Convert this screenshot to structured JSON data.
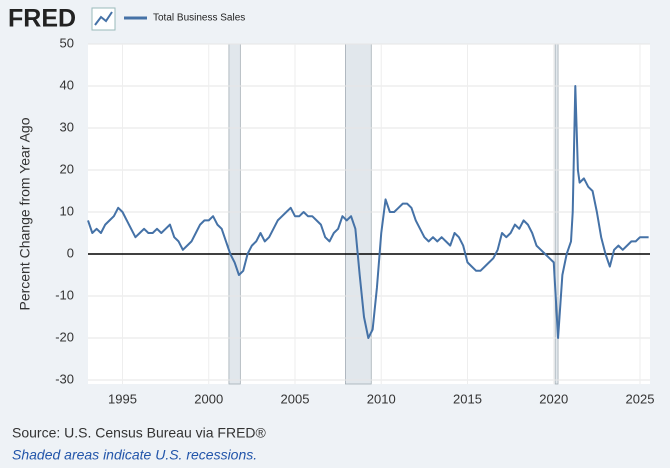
{
  "chart_data": {
    "type": "line",
    "brand": "FRED",
    "ylabel": "Percent Change from Year Ago",
    "source": "Source: U.S. Census Bureau via FRED®",
    "note": "Shaded areas indicate U.S. recessions.",
    "x": [
      1993.0,
      1993.25,
      1993.5,
      1993.75,
      1994.0,
      1994.25,
      1994.5,
      1994.75,
      1995.0,
      1995.25,
      1995.5,
      1995.75,
      1996.0,
      1996.25,
      1996.5,
      1996.75,
      1997.0,
      1997.25,
      1997.5,
      1997.75,
      1998.0,
      1998.25,
      1998.5,
      1998.75,
      1999.0,
      1999.25,
      1999.5,
      1999.75,
      2000.0,
      2000.25,
      2000.5,
      2000.75,
      2001.0,
      2001.25,
      2001.5,
      2001.75,
      2002.0,
      2002.25,
      2002.5,
      2002.75,
      2003.0,
      2003.25,
      2003.5,
      2003.75,
      2004.0,
      2004.25,
      2004.5,
      2004.75,
      2005.0,
      2005.25,
      2005.5,
      2005.75,
      2006.0,
      2006.25,
      2006.5,
      2006.75,
      2007.0,
      2007.25,
      2007.5,
      2007.75,
      2008.0,
      2008.25,
      2008.5,
      2008.75,
      2009.0,
      2009.25,
      2009.5,
      2009.75,
      2010.0,
      2010.25,
      2010.5,
      2010.75,
      2011.0,
      2011.25,
      2011.5,
      2011.75,
      2012.0,
      2012.25,
      2012.5,
      2012.75,
      2013.0,
      2013.25,
      2013.5,
      2013.75,
      2014.0,
      2014.25,
      2014.5,
      2014.75,
      2015.0,
      2015.25,
      2015.5,
      2015.75,
      2016.0,
      2016.25,
      2016.5,
      2016.75,
      2017.0,
      2017.25,
      2017.5,
      2017.75,
      2018.0,
      2018.25,
      2018.5,
      2018.75,
      2019.0,
      2019.25,
      2019.5,
      2019.75,
      2020.0,
      2020.25,
      2020.5,
      2020.75,
      2021.0,
      2021.1,
      2021.25,
      2021.4,
      2021.5,
      2021.75,
      2022.0,
      2022.25,
      2022.5,
      2022.75,
      2023.0,
      2023.25,
      2023.5,
      2023.75,
      2024.0,
      2024.25,
      2024.5,
      2024.75,
      2025.0,
      2025.25,
      2025.5
    ],
    "series": [
      {
        "name": "Total Business Sales",
        "color": "#4572a7",
        "values": [
          8,
          5,
          6,
          5,
          7,
          8,
          9,
          11,
          10,
          8,
          6,
          4,
          5,
          6,
          5,
          5,
          6,
          5,
          6,
          7,
          4,
          3,
          1,
          2,
          3,
          5,
          7,
          8,
          8,
          9,
          7,
          6,
          3,
          0,
          -2,
          -5,
          -4,
          0,
          2,
          3,
          5,
          3,
          4,
          6,
          8,
          9,
          10,
          11,
          9,
          9,
          10,
          9,
          9,
          8,
          7,
          4,
          3,
          5,
          6,
          9,
          8,
          9,
          6,
          -5,
          -15,
          -20,
          -18,
          -8,
          5,
          13,
          10,
          10,
          11,
          12,
          12,
          11,
          8,
          6,
          4,
          3,
          4,
          3,
          4,
          3,
          2,
          5,
          4,
          2,
          -2,
          -3,
          -4,
          -4,
          -3,
          -2,
          -1,
          1,
          5,
          4,
          5,
          7,
          6,
          8,
          7,
          5,
          2,
          1,
          0,
          -1,
          -2,
          -20,
          -5,
          0,
          3,
          10,
          40,
          20,
          17,
          18,
          16,
          15,
          10,
          4,
          0,
          -3,
          1,
          2,
          1,
          2,
          3,
          3,
          4,
          4,
          4
        ]
      }
    ],
    "recessions": [
      [
        2001.17,
        2001.83
      ],
      [
        2007.92,
        2009.42
      ],
      [
        2020.08,
        2020.25
      ]
    ],
    "xlim": [
      1993.0,
      2025.58
    ],
    "ylim": [
      -30,
      50
    ],
    "xticks": [
      1995,
      2000,
      2005,
      2010,
      2015,
      2020,
      2025
    ],
    "yticks": [
      -30,
      -20,
      -10,
      0,
      10,
      20,
      30,
      40,
      50
    ],
    "grid": true
  }
}
